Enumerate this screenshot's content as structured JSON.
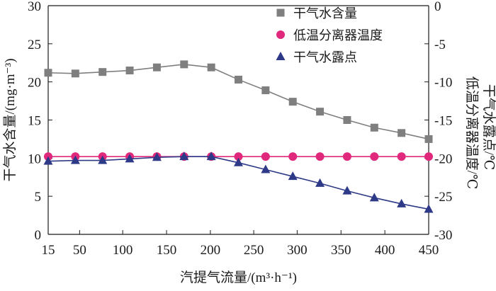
{
  "chart_data": {
    "type": "line",
    "x": [
      15,
      45,
      77,
      108,
      139,
      170,
      201,
      232,
      264,
      295,
      326,
      357,
      388,
      419,
      450
    ],
    "x_ticks": [
      15,
      50,
      100,
      150,
      200,
      250,
      300,
      350,
      400,
      450
    ],
    "xlabel": "汽提气流量/(m³·h⁻¹)",
    "ylabel_left": "干气水含量/(mg·m⁻³)",
    "ylabel_right_1": "低温分离器温度/℃",
    "ylabel_right_2": "干气水露点/℃",
    "ylim_left": [
      0,
      30
    ],
    "yticks_left": [
      0,
      5,
      10,
      15,
      20,
      25,
      30
    ],
    "ylim_right": [
      -30,
      0
    ],
    "yticks_right": [
      -30,
      -25,
      -20,
      -15,
      -10,
      -5,
      0
    ],
    "legend_position": "top-right",
    "grid": false,
    "series": [
      {
        "name": "干气水含量",
        "axis": "left",
        "marker": "square",
        "color": "#7f7f7f",
        "values": [
          21.2,
          21.1,
          21.3,
          21.5,
          21.9,
          22.3,
          21.9,
          20.3,
          18.9,
          17.4,
          16.1,
          15.0,
          14.0,
          13.3,
          12.5
        ]
      },
      {
        "name": "低温分离器温度",
        "axis": "right",
        "marker": "circle",
        "color": "#e0287d",
        "values": [
          -19.8,
          -19.8,
          -19.8,
          -19.8,
          -19.8,
          -19.8,
          -19.8,
          -19.8,
          -19.8,
          -19.8,
          -19.8,
          -19.8,
          -19.8,
          -19.8,
          -19.8
        ]
      },
      {
        "name": "干气水露点",
        "axis": "right",
        "marker": "triangle",
        "color": "#2e3a87",
        "values": [
          -20.4,
          -20.3,
          -20.3,
          -20.1,
          -19.9,
          -19.8,
          -19.8,
          -20.6,
          -21.5,
          -22.4,
          -23.3,
          -24.3,
          -25.2,
          -26.0,
          -26.7
        ]
      }
    ]
  }
}
